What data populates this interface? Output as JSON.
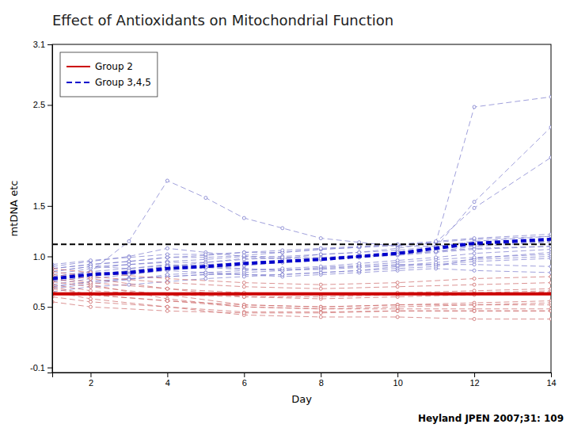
{
  "chart_data": {
    "type": "line",
    "title": "Effect of Antioxidants on Mitochondrial Function",
    "x_label": "Day",
    "y_label": "mtDNA etc",
    "annotations": [
      "Heyland JPEN 2007;31: 109"
    ],
    "xlim": [
      1,
      14
    ],
    "ylim": [
      -0.15,
      3.1
    ],
    "xticks": [
      2,
      4,
      6,
      8,
      10,
      12,
      14
    ],
    "yticks": [
      -0.1,
      0.5,
      {
        "value": 1.0,
        "label": "1.0"
      },
      1.5,
      2.5,
      3.1
    ],
    "grid": false,
    "legend": "upper left",
    "series": [
      {
        "x": [
          1,
          2,
          3,
          4,
          5,
          6,
          7,
          8,
          9,
          10,
          11,
          12,
          14
        ],
        "values": [
          0.85,
          0.9,
          0.88,
          0.92,
          0.9,
          0.88,
          0.86,
          0.88,
          0.9,
          0.92,
          0.92,
          0.92,
          0.9
        ],
        "color": "#7777cc",
        "line_style": "dashed",
        "marker": "circle"
      },
      {
        "x": [
          1,
          2,
          3,
          4,
          5,
          6,
          7,
          8,
          9,
          10,
          11,
          12,
          14
        ],
        "values": [
          0.8,
          0.85,
          0.82,
          0.86,
          0.84,
          0.82,
          0.8,
          0.82,
          0.84,
          0.86,
          0.88,
          0.86,
          0.84
        ],
        "color": "#7777cc",
        "line_style": "dashed",
        "marker": "circle"
      },
      {
        "x": [
          1,
          2,
          3,
          4,
          5,
          6,
          7,
          8,
          9,
          10,
          11,
          12,
          14
        ],
        "values": [
          0.9,
          0.95,
          1.0,
          1.08,
          1.04,
          1.0,
          0.98,
          0.98,
          1.0,
          1.02,
          1.05,
          1.08,
          1.1
        ],
        "color": "#7777cc",
        "line_style": "dashed",
        "marker": "circle"
      },
      {
        "x": [
          1,
          2,
          3,
          4,
          5,
          6,
          7,
          8,
          9,
          10,
          11,
          12,
          14
        ],
        "values": [
          0.78,
          0.85,
          1.15,
          1.75,
          1.58,
          1.38,
          1.28,
          1.18,
          1.14,
          1.1,
          1.1,
          1.15,
          1.2
        ],
        "color": "#7777cc",
        "line_style": "dashed",
        "marker": "circle"
      },
      {
        "x": [
          1,
          2,
          3,
          4,
          5,
          6,
          7,
          8,
          9,
          10,
          11,
          12,
          14
        ],
        "values": [
          0.75,
          0.8,
          0.85,
          0.9,
          0.94,
          0.98,
          0.98,
          1.02,
          1.04,
          1.08,
          1.14,
          1.48,
          1.98
        ],
        "color": "#7777cc",
        "line_style": "dashed",
        "marker": "circle"
      },
      {
        "x": [
          1,
          2,
          3,
          4,
          5,
          6,
          7,
          8,
          9,
          10,
          11,
          12,
          14
        ],
        "values": [
          0.7,
          0.75,
          0.78,
          0.8,
          0.82,
          0.82,
          0.82,
          0.84,
          0.86,
          0.88,
          0.9,
          0.98,
          1.04
        ],
        "color": "#7777cc",
        "line_style": "dashed",
        "marker": "circle"
      },
      {
        "x": [
          1,
          2,
          3,
          4,
          5,
          6,
          7,
          8,
          9,
          10,
          11,
          12,
          14
        ],
        "values": [
          0.82,
          0.88,
          0.92,
          0.95,
          0.97,
          1.0,
          1.0,
          1.02,
          1.04,
          1.06,
          1.1,
          1.12,
          1.15
        ],
        "color": "#7777cc",
        "line_style": "dashed",
        "marker": "circle"
      },
      {
        "x": [
          1,
          2,
          3,
          4,
          5,
          6,
          7,
          8,
          9,
          10,
          11,
          12,
          14
        ],
        "values": [
          0.88,
          0.92,
          0.95,
          0.99,
          0.99,
          1.01,
          1.04,
          1.07,
          1.09,
          1.11,
          1.14,
          1.17,
          1.2
        ],
        "color": "#7777cc",
        "line_style": "dashed",
        "marker": "circle"
      },
      {
        "x": [
          1,
          2,
          3,
          4,
          5,
          6,
          7,
          8,
          9,
          10,
          11,
          12,
          14
        ],
        "values": [
          0.65,
          0.7,
          0.72,
          0.75,
          0.78,
          0.8,
          0.82,
          0.84,
          0.86,
          0.9,
          0.92,
          0.95,
          0.98
        ],
        "color": "#7777cc",
        "line_style": "dashed",
        "marker": "circle"
      },
      {
        "x": [
          1,
          2,
          3,
          4,
          5,
          6,
          7,
          8,
          9,
          10,
          11,
          12,
          14
        ],
        "values": [
          0.72,
          0.78,
          0.82,
          0.87,
          0.89,
          0.91,
          0.94,
          0.97,
          0.99,
          1.01,
          1.04,
          1.07,
          1.1
        ],
        "color": "#7777cc",
        "line_style": "dashed",
        "marker": "circle"
      },
      {
        "x": [
          1,
          2,
          3,
          4,
          5,
          6,
          7,
          8,
          9,
          10,
          11,
          12,
          14
        ],
        "values": [
          0.88,
          0.92,
          0.95,
          0.99,
          1.01,
          1.04,
          1.04,
          1.07,
          1.09,
          1.11,
          1.14,
          2.48,
          2.58
        ],
        "color": "#7777cc",
        "line_style": "dashed",
        "marker": "circle"
      },
      {
        "x": [
          1,
          2,
          3,
          4,
          5,
          6,
          7,
          8,
          9,
          10,
          11,
          12,
          14
        ],
        "values": [
          0.75,
          0.8,
          0.85,
          0.89,
          0.89,
          0.91,
          0.94,
          0.97,
          0.99,
          1.04,
          1.09,
          1.54,
          2.28
        ],
        "color": "#7777cc",
        "line_style": "dashed",
        "marker": "circle"
      },
      {
        "x": [
          1,
          2,
          3,
          4,
          5,
          6,
          7,
          8,
          9,
          10,
          11,
          12,
          14
        ],
        "values": [
          0.8,
          0.85,
          0.88,
          0.91,
          0.89,
          0.87,
          0.87,
          0.87,
          0.89,
          0.91,
          0.94,
          0.97,
          1.0
        ],
        "color": "#7777cc",
        "line_style": "dashed",
        "marker": "circle"
      },
      {
        "x": [
          1,
          2,
          3,
          4,
          5,
          6,
          7,
          8,
          9,
          10,
          11,
          12,
          14
        ],
        "values": [
          0.85,
          0.9,
          0.92,
          0.94,
          0.94,
          0.97,
          0.99,
          0.99,
          1.01,
          1.04,
          1.07,
          1.11,
          1.15
        ],
        "color": "#7777cc",
        "line_style": "dashed",
        "marker": "circle"
      },
      {
        "x": [
          1,
          2,
          3,
          4,
          5,
          6,
          7,
          8,
          9,
          10,
          11,
          12,
          14
        ],
        "values": [
          0.7,
          0.75,
          0.78,
          0.8,
          0.82,
          0.84,
          0.86,
          0.89,
          0.91,
          0.94,
          0.97,
          0.99,
          1.02
        ],
        "color": "#7777cc",
        "line_style": "dashed",
        "marker": "circle"
      },
      {
        "x": [
          1,
          2,
          3,
          4,
          5,
          6,
          7,
          8,
          9,
          10,
          11,
          12,
          14
        ],
        "values": [
          0.76,
          0.82,
          0.86,
          0.9,
          0.92,
          0.94,
          0.96,
          0.98,
          1.0,
          1.02,
          1.05,
          1.1,
          1.14
        ],
        "color": "#7777cc",
        "line_style": "dashed",
        "marker": "circle"
      },
      {
        "x": [
          1,
          2,
          3,
          4,
          5,
          6,
          7,
          8,
          9,
          10,
          11,
          12,
          14
        ],
        "values": [
          0.68,
          0.73,
          0.77,
          0.82,
          0.84,
          0.86,
          0.88,
          0.9,
          0.93,
          0.96,
          0.99,
          1.03,
          1.07
        ],
        "color": "#7777cc",
        "line_style": "dashed",
        "marker": "circle"
      },
      {
        "x": [
          1,
          2,
          3,
          4,
          5,
          6,
          7,
          8,
          9,
          10,
          11,
          12,
          14
        ],
        "values": [
          0.92,
          0.96,
          0.99,
          1.02,
          1.02,
          1.04,
          1.06,
          1.08,
          1.1,
          1.12,
          1.15,
          1.18,
          1.22
        ],
        "color": "#7777cc",
        "line_style": "dashed",
        "marker": "circle"
      },
      {
        "x": [
          1,
          2,
          4,
          6,
          8,
          10,
          12,
          14
        ],
        "values": [
          0.82,
          0.78,
          0.68,
          0.6,
          0.58,
          0.6,
          0.62,
          0.65
        ],
        "color": "#cc6666",
        "line_style": "dashed",
        "marker": "circle"
      },
      {
        "x": [
          1,
          2,
          4,
          6,
          8,
          10,
          12,
          14
        ],
        "values": [
          0.75,
          0.7,
          0.62,
          0.52,
          0.5,
          0.52,
          0.52,
          0.52
        ],
        "color": "#cc6666",
        "line_style": "dashed",
        "marker": "circle"
      },
      {
        "x": [
          1,
          2,
          4,
          6,
          8,
          10,
          12,
          14
        ],
        "values": [
          0.78,
          0.72,
          0.58,
          0.5,
          0.48,
          0.48,
          0.48,
          0.48
        ],
        "color": "#cc6666",
        "line_style": "dashed",
        "marker": "circle"
      },
      {
        "x": [
          1,
          2,
          4,
          6,
          8,
          10,
          12,
          14
        ],
        "values": [
          0.65,
          0.58,
          0.5,
          0.42,
          0.4,
          0.4,
          0.38,
          0.38
        ],
        "color": "#cc6666",
        "line_style": "dashed",
        "marker": "circle"
      },
      {
        "x": [
          1,
          2,
          4,
          6,
          8,
          10,
          12,
          14
        ],
        "values": [
          0.6,
          0.55,
          0.5,
          0.45,
          0.45,
          0.46,
          0.46,
          0.46
        ],
        "color": "#cc6666",
        "line_style": "dashed",
        "marker": "circle"
      },
      {
        "x": [
          1,
          2,
          4,
          6,
          8,
          10,
          12,
          14
        ],
        "values": [
          0.7,
          0.62,
          0.56,
          0.52,
          0.5,
          0.52,
          0.54,
          0.56
        ],
        "color": "#cc6666",
        "line_style": "dashed",
        "marker": "circle"
      },
      {
        "x": [
          1,
          2,
          4,
          6,
          8,
          10,
          12,
          14
        ],
        "values": [
          0.85,
          0.8,
          0.74,
          0.7,
          0.68,
          0.7,
          0.72,
          0.74
        ],
        "color": "#cc6666",
        "line_style": "dashed",
        "marker": "circle"
      },
      {
        "x": [
          1,
          2,
          4,
          6,
          8,
          10,
          12,
          14
        ],
        "values": [
          0.88,
          0.84,
          0.78,
          0.74,
          0.72,
          0.74,
          0.78,
          0.8
        ],
        "color": "#cc6666",
        "line_style": "dashed",
        "marker": "circle"
      },
      {
        "x": [
          1,
          2,
          4,
          6,
          8,
          10,
          12,
          14
        ],
        "values": [
          0.72,
          0.66,
          0.62,
          0.6,
          0.6,
          0.62,
          0.64,
          0.66
        ],
        "color": "#cc6666",
        "line_style": "dashed",
        "marker": "circle"
      },
      {
        "x": [
          1,
          2,
          4,
          6,
          8,
          10,
          12,
          14
        ],
        "values": [
          0.55,
          0.5,
          0.46,
          0.44,
          0.44,
          0.46,
          0.46,
          0.46
        ],
        "color": "#cc6666",
        "line_style": "dashed",
        "marker": "circle"
      },
      {
        "x": [
          1,
          2,
          4,
          6,
          8,
          10,
          12,
          14
        ],
        "values": [
          0.8,
          0.74,
          0.68,
          0.64,
          0.62,
          0.64,
          0.66,
          0.68
        ],
        "color": "#cc6666",
        "line_style": "dashed",
        "marker": "circle"
      },
      {
        "x": [
          1,
          2,
          4,
          6,
          8,
          10,
          12,
          14
        ],
        "values": [
          0.68,
          0.62,
          0.56,
          0.5,
          0.48,
          0.5,
          0.52,
          0.54
        ],
        "color": "#cc6666",
        "line_style": "dashed",
        "marker": "circle"
      },
      {
        "type": "hline",
        "values": [
          1.12
        ],
        "color": "#000000",
        "line_style": "dashed"
      },
      {
        "name": "Group 3,4,5",
        "x": [
          1,
          2,
          3,
          4,
          5,
          6,
          7,
          8,
          9,
          10,
          11,
          12,
          14
        ],
        "values": [
          0.78,
          0.82,
          0.84,
          0.88,
          0.9,
          0.93,
          0.95,
          0.97,
          1.0,
          1.03,
          1.08,
          1.13,
          1.17
        ],
        "color": "#0000cc",
        "line_style": "dashed"
      },
      {
        "name": "Group 2",
        "x": [
          1,
          2,
          3,
          4,
          5,
          6,
          7,
          8,
          9,
          10,
          11,
          12,
          14
        ],
        "values": [
          0.63,
          0.63,
          0.63,
          0.63,
          0.63,
          0.63,
          0.63,
          0.63,
          0.63,
          0.63,
          0.63,
          0.63,
          0.63
        ],
        "color": "#cc0000",
        "line_style": "solid"
      }
    ]
  }
}
